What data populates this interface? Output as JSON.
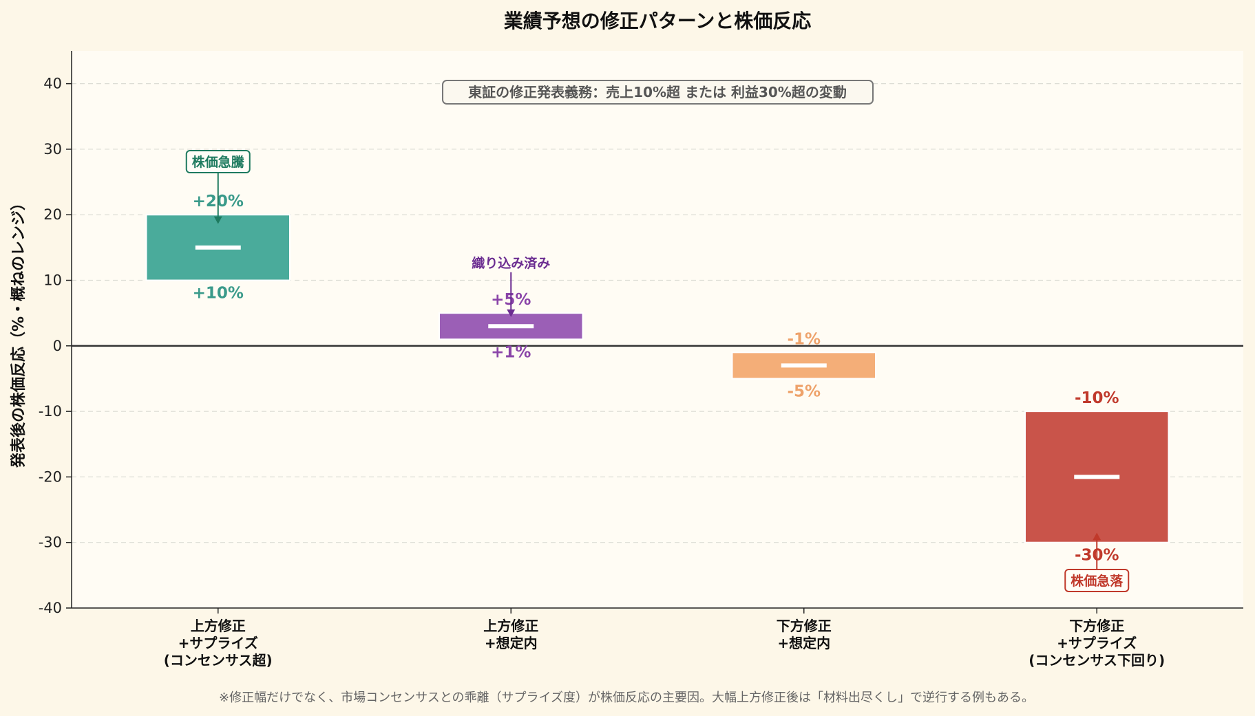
{
  "chart_data": {
    "type": "bar",
    "subtype": "floating-range",
    "title": "業績予想の修正パターンと株価反応",
    "ylabel": "発表後の株価反応（%・概ねのレンジ）",
    "xlabel": "",
    "ylim": [
      -40,
      45
    ],
    "yticks": [
      "40",
      "30",
      "20",
      "10",
      "0",
      "-10",
      "-20",
      "-30",
      "-40"
    ],
    "ytick_values": [
      40,
      30,
      20,
      10,
      0,
      -10,
      -20,
      -30,
      -40
    ],
    "grid": true,
    "categories": [
      [
        "上方修正",
        "+サプライズ",
        "(コンセンサス超)"
      ],
      [
        "上方修正",
        "+想定内"
      ],
      [
        "下方修正",
        "+想定内"
      ],
      [
        "下方修正",
        "+サプライズ",
        "(コンセンサス下回り)"
      ]
    ],
    "ranges": [
      {
        "low": 10,
        "high": 20,
        "mid": 15,
        "high_label": "+20%",
        "low_label": "+10%",
        "color": "#4aab9b",
        "label_color": "#3a9a8a"
      },
      {
        "low": 1,
        "high": 5,
        "mid": 3,
        "high_label": "+5%",
        "low_label": "+1%",
        "color": "#9b5fb6",
        "label_color": "#8a44a8"
      },
      {
        "low": -5,
        "high": -1,
        "mid": -3,
        "high_label": "-1%",
        "low_label": "-5%",
        "color": "#f4ae78",
        "label_color": "#eea26a"
      },
      {
        "low": -30,
        "high": -10,
        "mid": -20,
        "high_label": "-10%",
        "low_label": "-30%",
        "color": "#c9544a",
        "label_color": "#c0392b"
      }
    ],
    "annotations": [
      {
        "text": "株価急騰",
        "category": 0,
        "y": 28.1,
        "arrow_to": 18.6,
        "boxed": true,
        "color": "#1e7a5f"
      },
      {
        "text": "織り込み済み",
        "category": 1,
        "y": 12.7,
        "arrow_to": 4.4,
        "boxed": false,
        "color": "#6b2d91"
      },
      {
        "text": "株価急落",
        "category": 3,
        "y": -35.8,
        "arrow_to": -28.5,
        "boxed": true,
        "color": "#c0392b"
      }
    ],
    "rule_box": "東証の修正発表義務：売上10%超 または 利益30%超の変動",
    "footnote": "※修正幅だけでなく、市場コンセンサスとの乖離（サプライズ度）が株価反応の主要因。大幅上方修正後は「材料出尽くし」で逆行する例もある。"
  }
}
